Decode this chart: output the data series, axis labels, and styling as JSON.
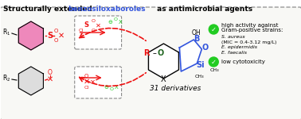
{
  "title_black": "Structurally extended ",
  "title_blue": "benzosiloxaboroles",
  "title_end": " as antimicrobial agents",
  "title_fontsize": 9.5,
  "bg_color": "#f5f5f5",
  "border_color": "#aaaaaa",
  "bullet1_text1": "high activity against",
  "bullet1_text2": "Gram-positive strains:",
  "bullet2_species": [
    "S. aureus",
    "(MIC = 0.4-3.12 mg/L)",
    "E. epidermidis",
    "E. faecalis"
  ],
  "bullet3_text": "low cytotoxicity",
  "derivatives_text": "31 derivatives",
  "green_color": "#22cc22",
  "red_color": "#ee1111",
  "blue_color": "#3355dd",
  "pink_color": "#ee66aa",
  "dark_green": "#226622"
}
